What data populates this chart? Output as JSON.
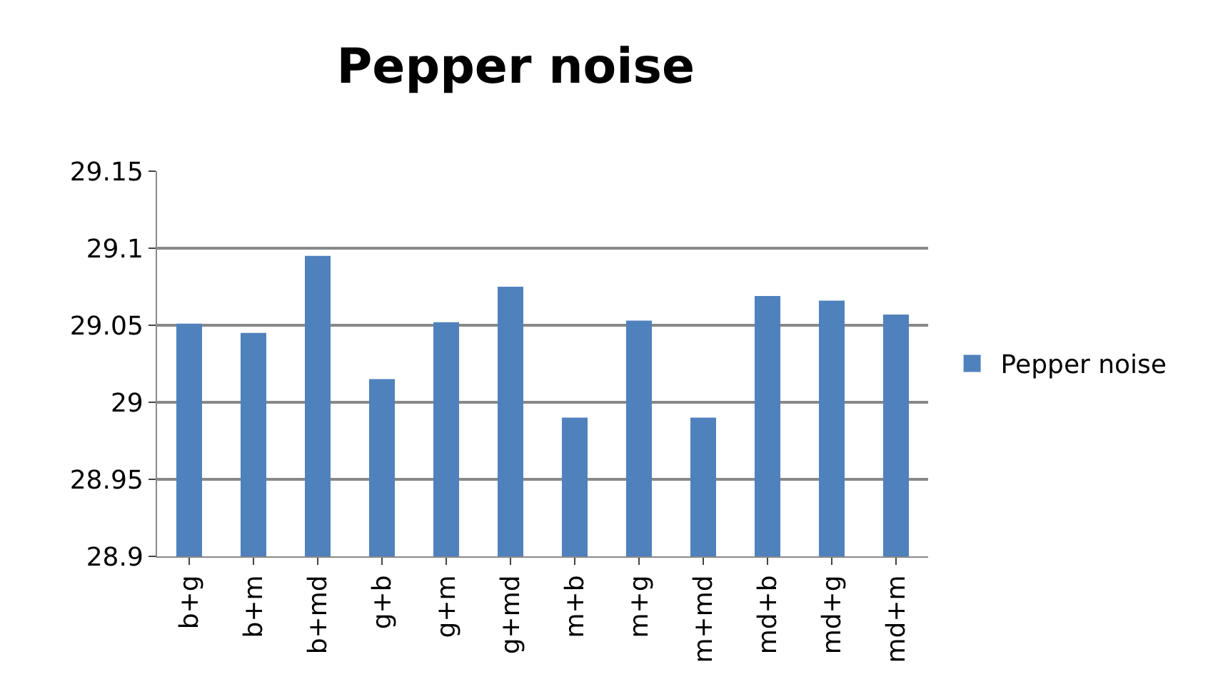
{
  "chart_data": {
    "type": "bar",
    "title": "Pepper noise",
    "categories": [
      "b+g",
      "b+m",
      "b+md",
      "g+b",
      "g+m",
      "g+md",
      "m+b",
      "m+g",
      "m+md",
      "md+b",
      "md+g",
      "md+m"
    ],
    "series": [
      {
        "name": "Pepper noise",
        "color": "#4f81bd",
        "values": [
          29.051,
          29.045,
          29.095,
          29.015,
          29.052,
          29.075,
          28.99,
          29.053,
          28.99,
          29.069,
          29.066,
          29.057
        ]
      }
    ],
    "ylim": [
      28.9,
      29.15
    ],
    "yticks": [
      28.9,
      28.95,
      29,
      29.05,
      29.1,
      29.15
    ],
    "grid": "y",
    "legend": "right"
  }
}
